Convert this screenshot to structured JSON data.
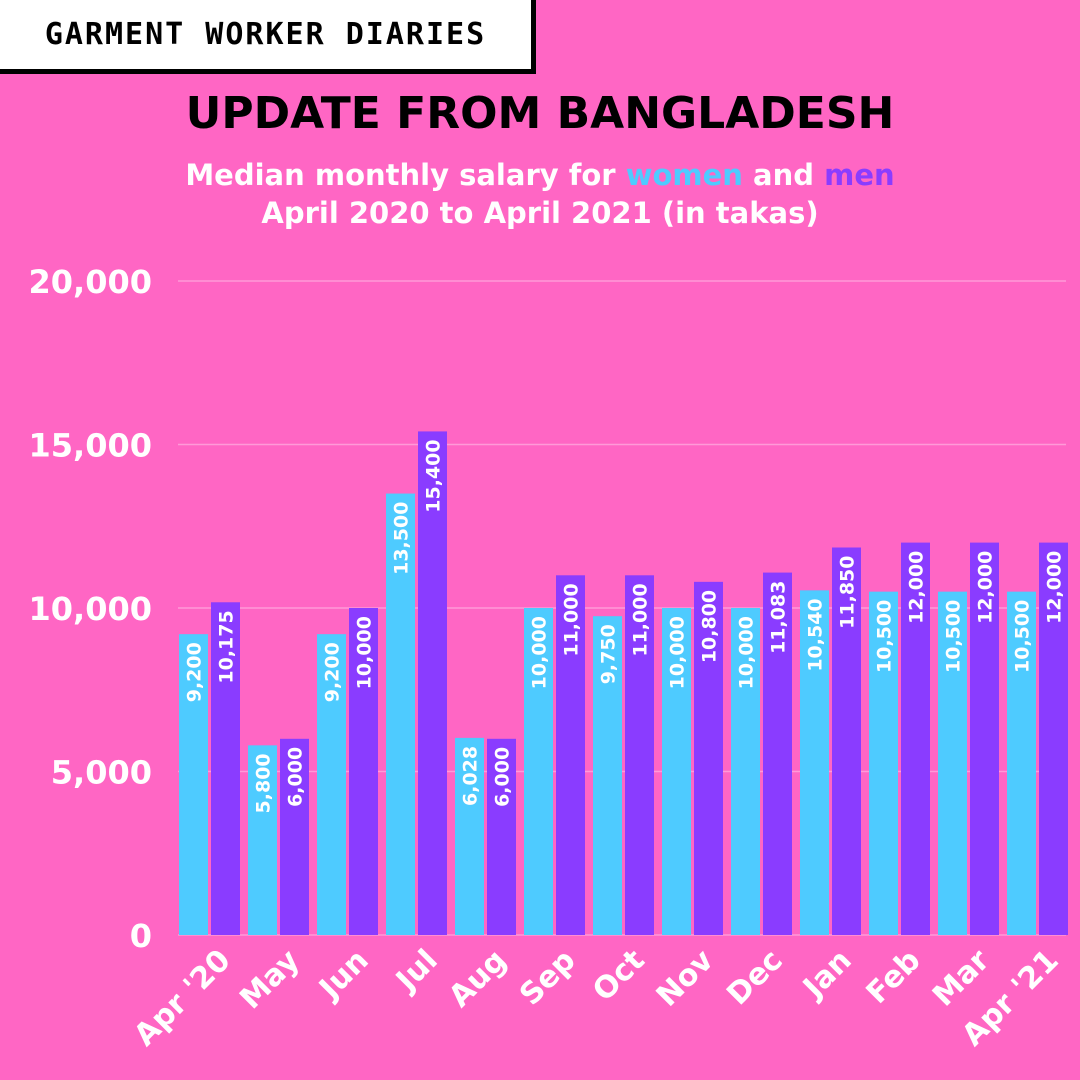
{
  "brand": {
    "label": "GARMENT WORKER DIARIES"
  },
  "header": {
    "title": "UPDATE FROM BANGLADESH",
    "subtitle_prefix": "Median monthly salary for ",
    "subtitle_women": "women",
    "subtitle_and": " and ",
    "subtitle_men": "men",
    "subtitle_line2": "April 2020 to April 2021 (in takas)"
  },
  "colors": {
    "background": "#ff66c4",
    "women": "#4ecbff",
    "men": "#8a3cff",
    "text": "#ffffff",
    "title": "#000000"
  },
  "chart_data": {
    "type": "bar",
    "title": "UPDATE FROM BANGLADESH",
    "subtitle": "Median monthly salary for women and men April 2020 to April 2021 (in takas)",
    "categories": [
      "Apr '20",
      "May",
      "Jun",
      "Jul",
      "Aug",
      "Sep",
      "Oct",
      "Nov",
      "Dec",
      "Jan",
      "Feb",
      "Mar",
      "Apr '21"
    ],
    "series": [
      {
        "name": "women",
        "color": "#4ecbff",
        "values": [
          9200,
          5800,
          9200,
          13500,
          6028,
          10000,
          9750,
          10000,
          10000,
          10540,
          10500,
          10500,
          10500
        ],
        "labels": [
          "9,200",
          "5,800",
          "9,200",
          "13,500",
          "6,028",
          "10,000",
          "9,750",
          "10,000",
          "10,000",
          "10,540",
          "10,500",
          "10,500",
          "10,500"
        ]
      },
      {
        "name": "men",
        "color": "#8a3cff",
        "values": [
          10175,
          6000,
          10000,
          15400,
          6000,
          11000,
          11000,
          10800,
          11083,
          11850,
          12000,
          12000,
          12000
        ],
        "labels": [
          "10,175",
          "6,000",
          "10,000",
          "15,400",
          "6,000",
          "11,000",
          "11,000",
          "10,800",
          "11,083",
          "11,850",
          "12,000",
          "12,000",
          "12,000"
        ]
      }
    ],
    "yticks": [
      0,
      5000,
      10000,
      15000,
      20000
    ],
    "ytick_labels": [
      "0",
      "5,000",
      "10,000",
      "15,000",
      "20,000"
    ],
    "ylim": [
      0,
      20000
    ],
    "grid": true,
    "xlabel": "",
    "ylabel": ""
  }
}
